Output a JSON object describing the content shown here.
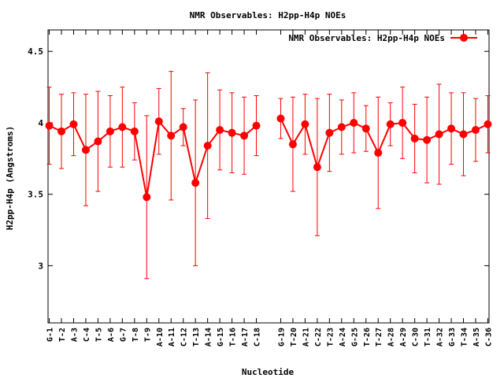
{
  "chart_data": {
    "type": "line",
    "title": "NMR Observables: H2pp-H4p NOEs",
    "xlabel": "Nucleotide",
    "ylabel": "H2pp-H4p (Angstroms)",
    "ylim": [
      2.6,
      4.65
    ],
    "yticks": [
      "3",
      "3.5",
      "4",
      "4.5"
    ],
    "ytick_values": [
      3,
      3.5,
      4,
      4.5
    ],
    "grid": false,
    "legend_position": "top-right",
    "series": [
      {
        "name": "NMR Observables: H2pp-H4p NOEs",
        "color": "#ff0000",
        "points": [
          {
            "label": "G-1",
            "idx": 1,
            "y": 3.98,
            "err": 0.27
          },
          {
            "label": "T-2",
            "idx": 2,
            "y": 3.94,
            "err": 0.26
          },
          {
            "label": "A-3",
            "idx": 3,
            "y": 3.99,
            "err": 0.22
          },
          {
            "label": "C-4",
            "idx": 4,
            "y": 3.81,
            "err": 0.39
          },
          {
            "label": "T-5",
            "idx": 5,
            "y": 3.87,
            "err": 0.35
          },
          {
            "label": "A-6",
            "idx": 6,
            "y": 3.94,
            "err": 0.25
          },
          {
            "label": "G-7",
            "idx": 7,
            "y": 3.97,
            "err": 0.28
          },
          {
            "label": "T-8",
            "idx": 8,
            "y": 3.94,
            "err": 0.2
          },
          {
            "label": "T-9",
            "idx": 9,
            "y": 3.48,
            "err": 0.57
          },
          {
            "label": "A-10",
            "idx": 10,
            "y": 4.01,
            "err": 0.23
          },
          {
            "label": "A-11",
            "idx": 11,
            "y": 3.91,
            "err": 0.45
          },
          {
            "label": "C-12",
            "idx": 12,
            "y": 3.97,
            "err": 0.13
          },
          {
            "label": "T-13",
            "idx": 13,
            "y": 3.58,
            "err": 0.58
          },
          {
            "label": "A-14",
            "idx": 14,
            "y": 3.84,
            "err": 0.51
          },
          {
            "label": "G-15",
            "idx": 15,
            "y": 3.95,
            "err": 0.28
          },
          {
            "label": "T-16",
            "idx": 16,
            "y": 3.93,
            "err": 0.28
          },
          {
            "label": "A-17",
            "idx": 17,
            "y": 3.91,
            "err": 0.27
          },
          {
            "label": "C-18",
            "idx": 18,
            "y": 3.98,
            "err": 0.21
          },
          {
            "label": "G-19",
            "idx": 20,
            "y": 4.03,
            "err": 0.14
          },
          {
            "label": "T-20",
            "idx": 21,
            "y": 3.85,
            "err": 0.33
          },
          {
            "label": "A-21",
            "idx": 22,
            "y": 3.99,
            "err": 0.21
          },
          {
            "label": "C-22",
            "idx": 23,
            "y": 3.69,
            "err": 0.48
          },
          {
            "label": "T-23",
            "idx": 24,
            "y": 3.93,
            "err": 0.27
          },
          {
            "label": "A-24",
            "idx": 25,
            "y": 3.97,
            "err": 0.19
          },
          {
            "label": "G-25",
            "idx": 26,
            "y": 4.0,
            "err": 0.21
          },
          {
            "label": "T-26",
            "idx": 27,
            "y": 3.96,
            "err": 0.16
          },
          {
            "label": "T-27",
            "idx": 28,
            "y": 3.79,
            "err": 0.39
          },
          {
            "label": "A-28",
            "idx": 29,
            "y": 3.99,
            "err": 0.15
          },
          {
            "label": "A-29",
            "idx": 30,
            "y": 4.0,
            "err": 0.25
          },
          {
            "label": "C-30",
            "idx": 31,
            "y": 3.89,
            "err": 0.24
          },
          {
            "label": "T-31",
            "idx": 32,
            "y": 3.88,
            "err": 0.3
          },
          {
            "label": "A-32",
            "idx": 33,
            "y": 3.92,
            "err": 0.35
          },
          {
            "label": "G-33",
            "idx": 34,
            "y": 3.96,
            "err": 0.25
          },
          {
            "label": "T-34",
            "idx": 35,
            "y": 3.92,
            "err": 0.29
          },
          {
            "label": "A-35",
            "idx": 36,
            "y": 3.95,
            "err": 0.22
          },
          {
            "label": "C-36",
            "idx": 37,
            "y": 3.99,
            "err": 0.2
          }
        ]
      }
    ],
    "x_index_range": [
      0.9,
      37.1
    ]
  }
}
